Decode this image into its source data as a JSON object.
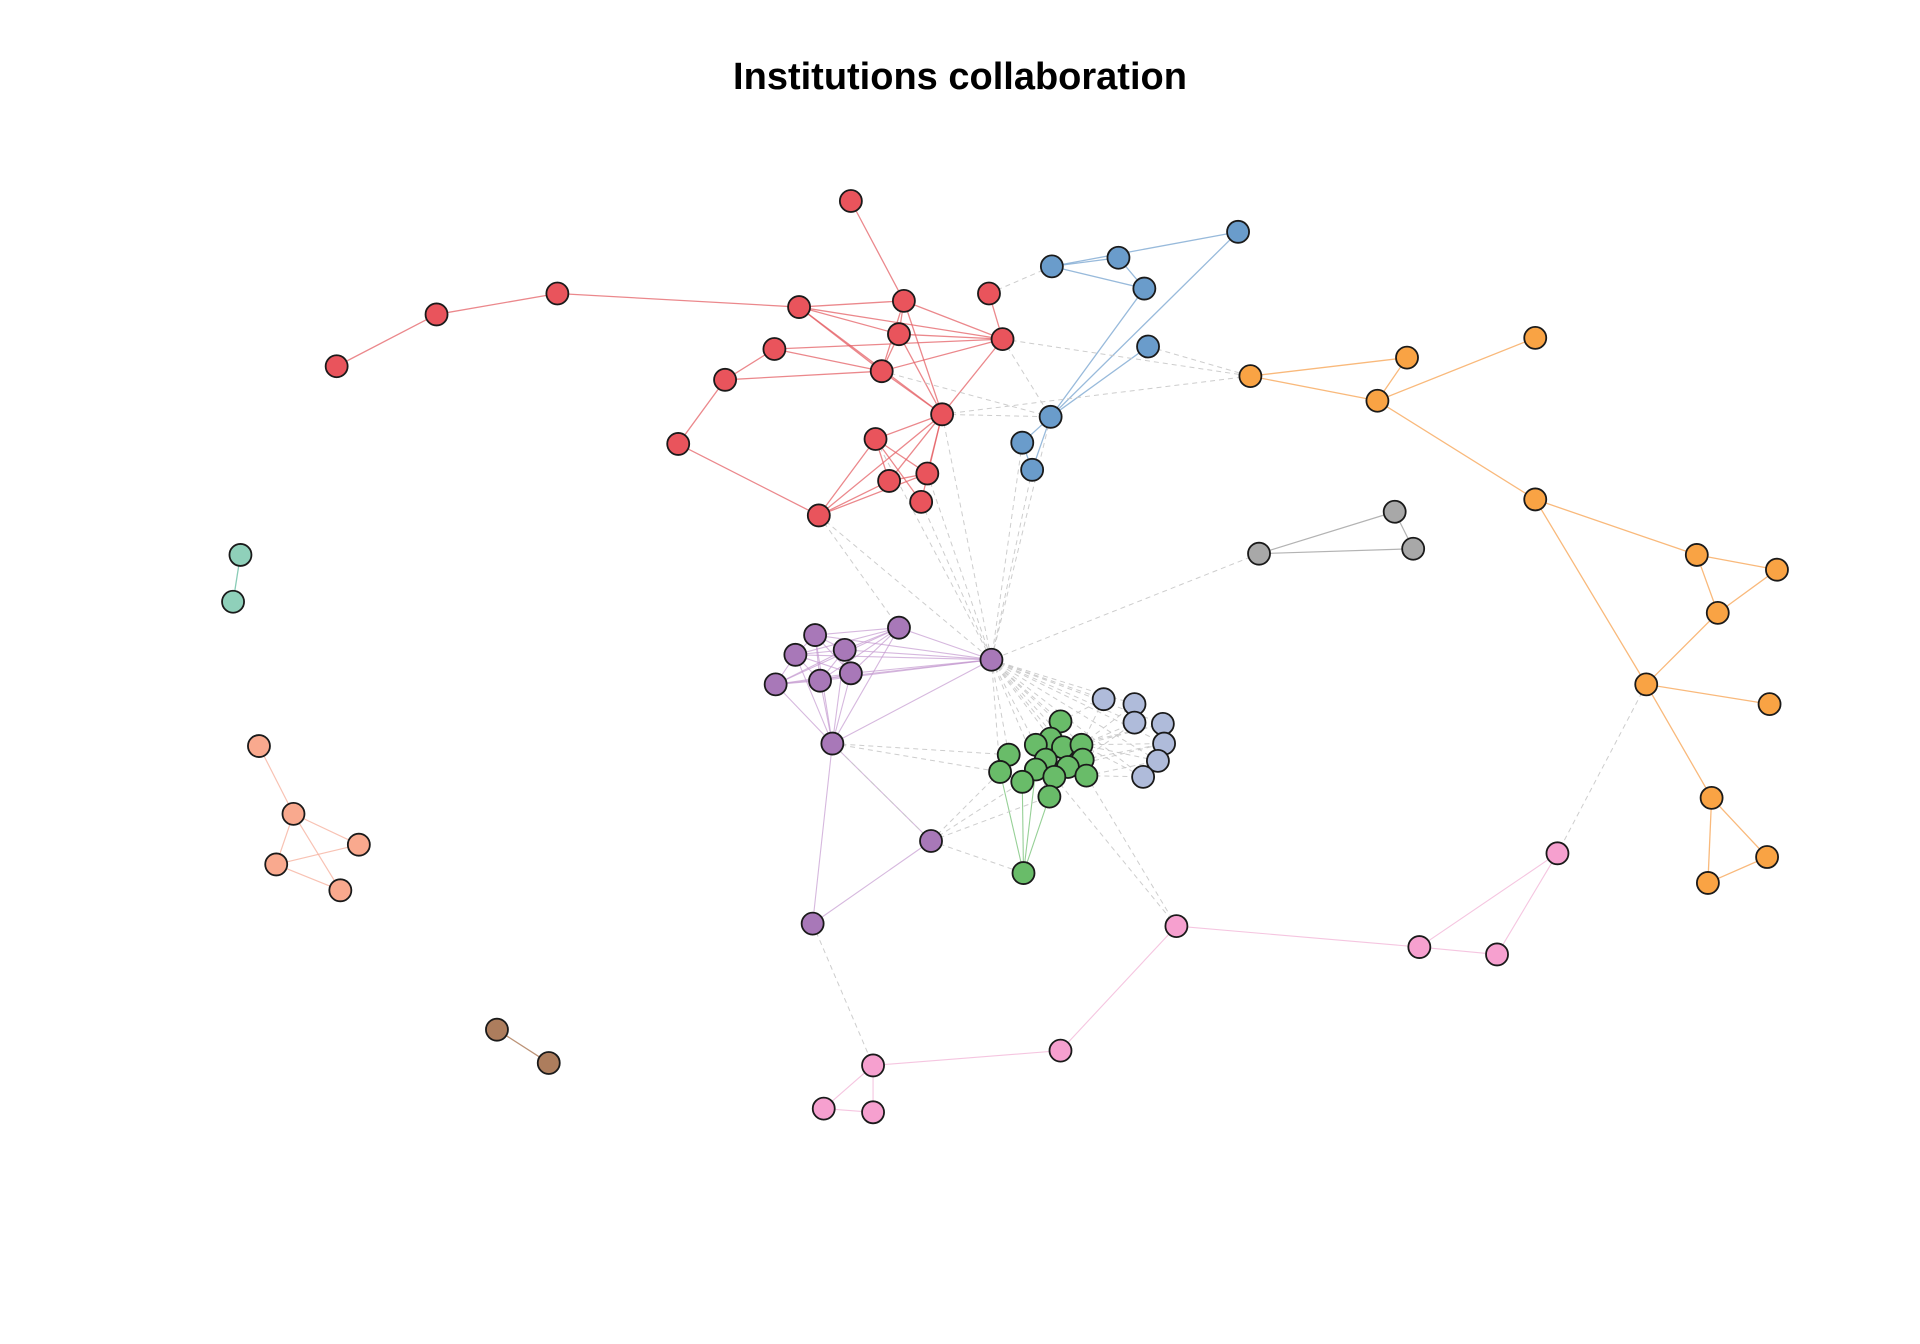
{
  "title": "Institutions collaboration",
  "cluster_colors": {
    "red": "#E9545C",
    "blue": "#6A9CCB",
    "orange": "#F9A344",
    "gray": "#A8A8A8",
    "purple": "#A878B8",
    "lavender": "#AFBBDA",
    "green": "#69BC69",
    "pink": "#F6A0CF",
    "teal": "#8FD0BA",
    "salmon": "#F9A98E",
    "brown": "#AD7D5D"
  },
  "edge_colors": {
    "red": "#E46066",
    "blue": "#7EA9D2",
    "orange": "#F7A75A",
    "gray": "#A0A0A0",
    "purple": "#C49AD0",
    "green": "#7CC47C",
    "pink": "#F2B6D8",
    "teal": "#7CC7AE",
    "salmon": "#F6B3A0",
    "brown": "#B58768",
    "between": "#C8C8C8"
  }
}
